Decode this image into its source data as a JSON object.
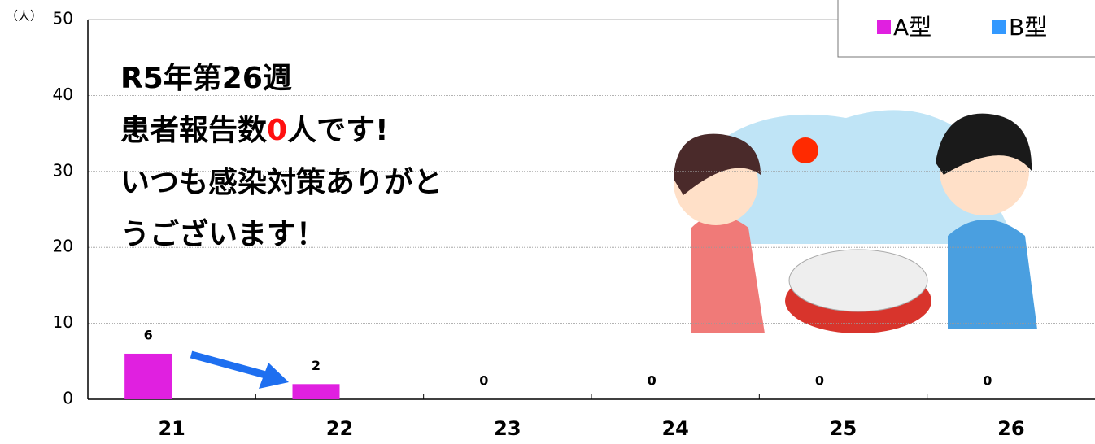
{
  "chart_data": {
    "type": "bar",
    "y_label": "（人）",
    "categories": [
      "21",
      "22",
      "23",
      "24",
      "25",
      "26"
    ],
    "series": [
      {
        "name": "A型",
        "color": "#e020e0",
        "values": [
          6,
          2,
          0,
          0,
          0,
          0
        ]
      },
      {
        "name": "B型",
        "color": "#3399ff",
        "values": [
          0,
          0,
          0,
          0,
          0,
          0
        ]
      }
    ],
    "ylim": [
      0,
      50
    ],
    "yticks": [
      0,
      10,
      20,
      30,
      40,
      50
    ],
    "grid": true,
    "legend": "top-right",
    "annotations": [
      "R5年第26週",
      "患者報告数",
      "0",
      "人です!",
      "いつも感染対策ありがと",
      "うございます！"
    ]
  }
}
